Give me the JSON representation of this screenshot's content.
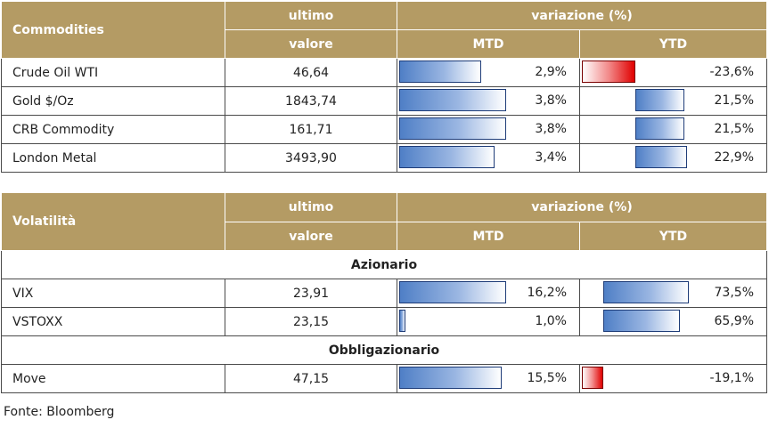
{
  "commodities": {
    "header": {
      "name_label": "Commodities",
      "last_label_line1": "ultimo",
      "last_label_line2": "valore",
      "change_label": "variazione (%)",
      "mtd_label": "MTD",
      "ytd_label": "YTD"
    },
    "rows": [
      {
        "name": "Crude Oil WTI",
        "value": "46,64",
        "mtd": "2,9%",
        "mtd_num": 2.9,
        "ytd": "-23,6%",
        "ytd_num": -23.6
      },
      {
        "name": "Gold $/Oz",
        "value": "1843,74",
        "mtd": "3,8%",
        "mtd_num": 3.8,
        "ytd": "21,5%",
        "ytd_num": 21.5
      },
      {
        "name": "CRB Commodity",
        "value": "161,71",
        "mtd": "3,8%",
        "mtd_num": 3.8,
        "ytd": "21,5%",
        "ytd_num": 21.5
      },
      {
        "name": "London Metal",
        "value": "3493,90",
        "mtd": "3,4%",
        "mtd_num": 3.4,
        "ytd": "22,9%",
        "ytd_num": 22.9
      }
    ]
  },
  "volatility": {
    "header": {
      "name_label": "Volatilità",
      "last_label_line1": "ultimo",
      "last_label_line2": "valore",
      "change_label": "variazione (%)",
      "mtd_label": "MTD",
      "ytd_label": "YTD"
    },
    "section_equity": "Azionario",
    "equity_rows": [
      {
        "name": "VIX",
        "value": "23,91",
        "mtd": "16,2%",
        "mtd_num": 16.2,
        "ytd": "73,5%",
        "ytd_num": 73.5
      },
      {
        "name": "VSTOXX",
        "value": "23,15",
        "mtd": "1,0%",
        "mtd_num": 1.0,
        "ytd": "65,9%",
        "ytd_num": 65.9
      }
    ],
    "section_bond": "Obbligazionario",
    "bond_rows": [
      {
        "name": "Move",
        "value": "47,15",
        "mtd": "15,5%",
        "mtd_num": 15.5,
        "ytd": "-19,1%",
        "ytd_num": -19.1
      }
    ]
  },
  "source": "Fonte: Bloomberg",
  "colors": {
    "header_bg": "#b49b64",
    "bar_positive": "#4f7fc6",
    "bar_negative": "#e00000"
  }
}
